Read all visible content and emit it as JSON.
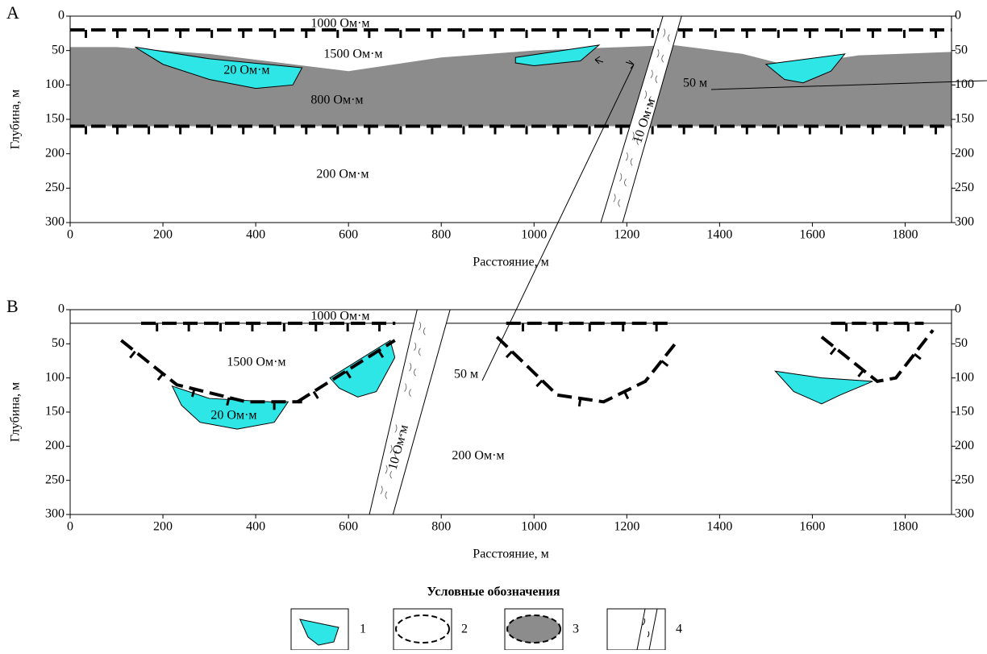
{
  "panels": [
    {
      "letter": "A",
      "y_axis_label": "Глубина, м",
      "x_axis_label": "Расстояние, м",
      "xlim": [
        0,
        1900
      ],
      "ylim": [
        0,
        300
      ],
      "xticks": [
        0,
        200,
        400,
        600,
        800,
        1000,
        1200,
        1400,
        1600,
        1800
      ],
      "yticks": [
        0,
        50,
        100,
        150,
        200,
        250,
        300
      ],
      "labels": [
        "1000 Ом·м",
        "1500 Ом·м",
        "20 Ом·м",
        "800 Ом·м",
        "200 Ом·м",
        "10 Ом·м",
        "50 м"
      ]
    },
    {
      "letter": "B",
      "y_axis_label": "Глубина, м",
      "x_axis_label": "Расстояние, м",
      "xlim": [
        0,
        1900
      ],
      "ylim": [
        0,
        300
      ],
      "xticks": [
        0,
        200,
        400,
        600,
        800,
        1000,
        1200,
        1400,
        1600,
        1800
      ],
      "yticks": [
        0,
        50,
        100,
        150,
        200,
        250,
        300
      ],
      "labels": [
        "1000 Ом·м",
        "1500 Ом·м",
        "20 Ом·м",
        "200 Ом·м",
        "10 Ом·м",
        "50 м"
      ]
    }
  ],
  "legend": {
    "title": "Условные обозначения",
    "items": [
      "1",
      "2",
      "3",
      "4"
    ]
  }
}
